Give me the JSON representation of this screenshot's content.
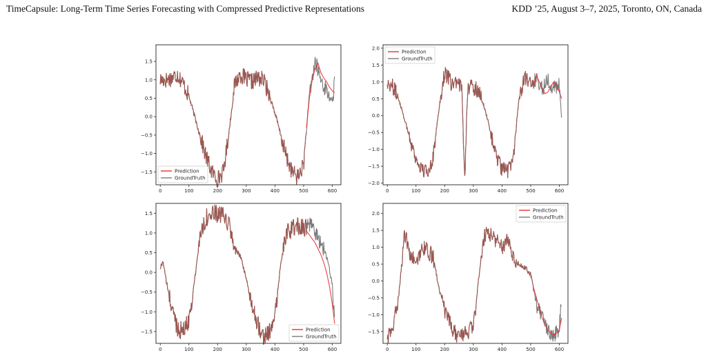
{
  "header": {
    "left": "TimeCapsule: Long-Term Time Series Forecasting with Compressed Predictive Representations",
    "right": "KDD ’25, August 3–7, 2025, Toronto, ON, Canada"
  },
  "colors": {
    "prediction": "#e8302f",
    "ground_truth": "#7b7b7b",
    "overlap": "#9c5650"
  },
  "chart_data": [
    {
      "type": "line",
      "xlim": [
        -15,
        630
      ],
      "ylim": [
        -1.85,
        1.95
      ],
      "xticks": [
        0,
        100,
        200,
        300,
        400,
        500,
        600
      ],
      "yticks": [
        -1.5,
        -1.0,
        -0.5,
        0.0,
        0.5,
        1.0,
        1.5
      ],
      "legend_position": "lower-left",
      "series": [
        {
          "name": "Prediction",
          "x": [
            510,
            520,
            530,
            540,
            550,
            560,
            570,
            580,
            590,
            600,
            608
          ],
          "y": [
            -0.3,
            0.5,
            1.0,
            1.3,
            1.45,
            1.2,
            1.05,
            0.95,
            0.8,
            0.7,
            0.65
          ]
        },
        {
          "name": "GroundTruth",
          "x": [
            0,
            20,
            40,
            60,
            80,
            100,
            120,
            140,
            160,
            180,
            200,
            220,
            240,
            260,
            280,
            300,
            320,
            340,
            360,
            380,
            400,
            420,
            440,
            460,
            480,
            500,
            520,
            540,
            560,
            580,
            600,
            608
          ],
          "y": [
            1.0,
            1.0,
            1.05,
            1.15,
            0.9,
            0.55,
            0.0,
            -0.55,
            -1.1,
            -1.5,
            -1.7,
            -1.5,
            -0.4,
            0.9,
            1.15,
            1.0,
            0.95,
            1.05,
            1.0,
            0.6,
            0.1,
            -0.5,
            -1.1,
            -1.5,
            -1.65,
            -1.3,
            0.6,
            1.5,
            1.0,
            0.7,
            0.4,
            0.9
          ]
        }
      ]
    },
    {
      "type": "line",
      "xlim": [
        -15,
        630
      ],
      "ylim": [
        -2.05,
        2.1
      ],
      "xticks": [
        0,
        100,
        200,
        300,
        400,
        500,
        600
      ],
      "yticks": [
        -2.0,
        -1.5,
        -1.0,
        -0.5,
        0.0,
        0.5,
        1.0,
        1.5,
        2.0
      ],
      "legend_position": "upper-left",
      "series": [
        {
          "name": "Prediction",
          "x": [
            510,
            520,
            530,
            540,
            550,
            560,
            570,
            580,
            590,
            600,
            608
          ],
          "y": [
            0.9,
            1.2,
            1.0,
            0.8,
            0.65,
            0.7,
            0.85,
            1.0,
            0.9,
            0.7,
            0.5
          ]
        },
        {
          "name": "GroundTruth",
          "x": [
            0,
            20,
            40,
            60,
            80,
            100,
            120,
            140,
            160,
            180,
            200,
            220,
            240,
            260,
            270,
            280,
            300,
            320,
            340,
            360,
            380,
            400,
            420,
            440,
            460,
            480,
            500,
            520,
            540,
            560,
            580,
            600,
            608
          ],
          "y": [
            1.0,
            0.85,
            0.5,
            -0.1,
            -0.7,
            -1.3,
            -1.6,
            -1.7,
            -1.2,
            0.2,
            1.3,
            1.0,
            0.9,
            0.85,
            -1.85,
            0.9,
            0.8,
            0.75,
            0.2,
            -0.5,
            -1.2,
            -1.6,
            -1.65,
            -1.2,
            0.6,
            1.1,
            0.9,
            1.1,
            0.8,
            1.1,
            0.8,
            0.9,
            -0.1
          ]
        }
      ]
    },
    {
      "type": "line",
      "xlim": [
        -15,
        630
      ],
      "ylim": [
        -1.8,
        1.75
      ],
      "xticks": [
        0,
        100,
        200,
        300,
        400,
        500,
        600
      ],
      "yticks": [
        -1.5,
        -1.0,
        -0.5,
        0.0,
        0.5,
        1.0,
        1.5
      ],
      "legend_position": "lower-right",
      "series": [
        {
          "name": "Prediction",
          "x": [
            510,
            520,
            530,
            540,
            550,
            560,
            570,
            580,
            590,
            600,
            608
          ],
          "y": [
            1.05,
            0.95,
            0.85,
            0.75,
            0.6,
            0.45,
            0.25,
            0.0,
            -0.35,
            -0.8,
            -1.3
          ]
        },
        {
          "name": "GroundTruth",
          "x": [
            0,
            10,
            20,
            40,
            60,
            80,
            100,
            120,
            140,
            160,
            180,
            200,
            220,
            240,
            260,
            280,
            300,
            320,
            340,
            360,
            380,
            400,
            420,
            440,
            460,
            480,
            500,
            520,
            540,
            560,
            580,
            600,
            608
          ],
          "y": [
            0.1,
            0.3,
            -0.2,
            -0.9,
            -1.4,
            -1.5,
            -1.2,
            -0.2,
            1.0,
            1.4,
            1.45,
            1.5,
            1.4,
            1.2,
            0.6,
            0.4,
            -0.2,
            -0.8,
            -1.3,
            -1.6,
            -1.55,
            -1.1,
            0.2,
            1.0,
            1.1,
            1.2,
            1.1,
            1.2,
            1.0,
            0.8,
            0.4,
            -0.3,
            -1.3
          ]
        }
      ]
    },
    {
      "type": "line",
      "xlim": [
        -15,
        630
      ],
      "ylim": [
        -1.85,
        2.3
      ],
      "xticks": [
        0,
        100,
        200,
        300,
        400,
        500,
        600
      ],
      "yticks": [
        -1.5,
        -1.0,
        -0.5,
        0.0,
        0.5,
        1.0,
        1.5,
        2.0
      ],
      "legend_position": "upper-right",
      "series": [
        {
          "name": "Prediction",
          "x": [
            510,
            520,
            530,
            540,
            550,
            560,
            570,
            580,
            590,
            600,
            608
          ],
          "y": [
            -0.2,
            -0.5,
            -0.8,
            -1.1,
            -1.3,
            -1.45,
            -1.55,
            -1.6,
            -1.55,
            -1.45,
            -1.1
          ]
        },
        {
          "name": "GroundTruth",
          "x": [
            0,
            20,
            40,
            60,
            80,
            100,
            120,
            140,
            160,
            180,
            200,
            220,
            240,
            260,
            280,
            300,
            320,
            340,
            360,
            380,
            400,
            420,
            440,
            460,
            480,
            500,
            520,
            540,
            560,
            580,
            600,
            608
          ],
          "y": [
            -1.7,
            -1.4,
            -0.4,
            1.4,
            0.8,
            0.5,
            1.0,
            0.9,
            0.7,
            -0.2,
            -0.9,
            -1.3,
            -1.6,
            -1.6,
            -1.5,
            -1.4,
            0.2,
            1.4,
            1.4,
            1.2,
            1.0,
            1.3,
            0.7,
            0.5,
            0.4,
            0.2,
            -0.7,
            -1.1,
            -1.5,
            -1.6,
            -1.4,
            -0.5
          ]
        }
      ]
    }
  ]
}
